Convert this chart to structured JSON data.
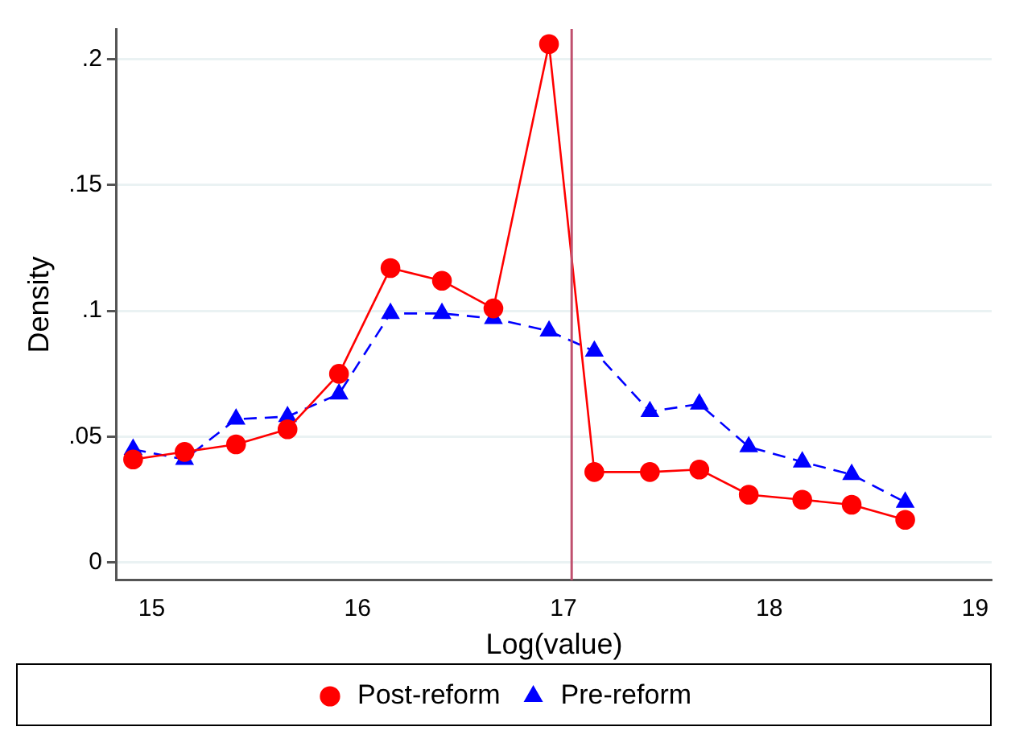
{
  "chart_data": {
    "type": "line",
    "xlabel": "Log(value)",
    "ylabel": "Density",
    "x": [
      14.91,
      15.16,
      15.41,
      15.66,
      15.91,
      16.16,
      16.41,
      16.66,
      16.93,
      17.15,
      17.42,
      17.66,
      17.9,
      18.16,
      18.4,
      18.66
    ],
    "series": [
      {
        "name": "Post-reform",
        "color": "#ff0000",
        "marker": "circle",
        "line_style": "solid",
        "values": [
          0.041,
          0.044,
          0.047,
          0.053,
          0.075,
          0.117,
          0.112,
          0.101,
          0.206,
          0.036,
          0.036,
          0.037,
          0.027,
          0.025,
          0.023,
          0.017
        ]
      },
      {
        "name": "Pre-reform",
        "color": "#0000ff",
        "marker": "triangle",
        "line_style": "dashed",
        "values": [
          0.045,
          0.041,
          0.057,
          0.058,
          0.067,
          0.099,
          0.099,
          0.097,
          0.092,
          0.084,
          0.06,
          0.063,
          0.046,
          0.04,
          0.035,
          0.024
        ]
      }
    ],
    "xlim": [
      14.83,
      19.08
    ],
    "xticks": [
      15,
      16,
      17,
      18,
      19
    ],
    "ylim": [
      -0.007,
      0.212
    ],
    "yticks": [
      {
        "value": 0,
        "label": "0"
      },
      {
        "value": 0.05,
        "label": ".05"
      },
      {
        "value": 0.1,
        "label": ".1"
      },
      {
        "value": 0.15,
        "label": ".15"
      },
      {
        "value": 0.2,
        "label": ".2"
      }
    ],
    "ref_lines": [
      {
        "axis": "x",
        "value": 17.04,
        "color": "#c0506e"
      }
    ],
    "grid": "y",
    "legend": "bottom"
  }
}
